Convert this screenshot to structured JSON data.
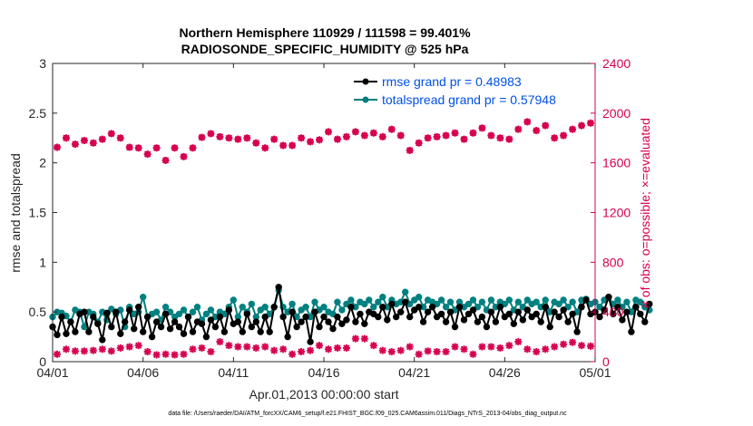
{
  "chart_data": {
    "type": "line",
    "title_line1": "Northern Hemisphere 110929 / 111598 = 99.401%",
    "title_line2": "RADIOSONDE_SPECIFIC_HUMIDITY @ 525 hPa",
    "xlabel": "Apr.01,2013 00:00:00 start",
    "ylabel_left": "rmse and totalspread",
    "ylabel_right": "# of obs: o=possible; ×=evaluated",
    "footnote": "data file: /Users/raeder/DAI/ATM_forcXX/CAM6_setup/f.e21.FHIST_BGC.f09_025.CAM6assim.011/Diags_NTrS_2013-04/obs_diag_output.nc",
    "x_tick_labels": [
      "04/01",
      "04/06",
      "04/11",
      "04/16",
      "04/21",
      "04/26",
      "05/01"
    ],
    "x_tick_days": [
      0,
      5,
      10,
      15,
      20,
      25,
      30
    ],
    "xlim": [
      0,
      30
    ],
    "ylim_left": [
      0,
      3
    ],
    "yticks_left": [
      "0",
      "0.5",
      "1",
      "1.5",
      "2",
      "2.5",
      "3"
    ],
    "ylim_right": [
      0,
      2400
    ],
    "yticks_right": [
      "0",
      "400",
      "800",
      "1200",
      "1600",
      "2000",
      "2400"
    ],
    "legend": [
      {
        "label": "rmse grand pr = 0.48983",
        "color": "#000000"
      },
      {
        "label": "totalspread grand pr = 0.57948",
        "color": "#008080"
      }
    ],
    "colors": {
      "rmse": "#000000",
      "spread": "#008080",
      "obs": "#d6004f"
    },
    "time_step_days": 0.25,
    "series": [
      {
        "name": "rmse",
        "values": [
          0.35,
          0.27,
          0.45,
          0.28,
          0.4,
          0.3,
          0.48,
          0.5,
          0.3,
          0.45,
          0.38,
          0.22,
          0.49,
          0.35,
          0.5,
          0.28,
          0.4,
          0.52,
          0.33,
          0.55,
          0.3,
          0.45,
          0.25,
          0.4,
          0.35,
          0.48,
          0.33,
          0.4,
          0.35,
          0.28,
          0.45,
          0.3,
          0.4,
          0.38,
          0.25,
          0.42,
          0.35,
          0.45,
          0.3,
          0.52,
          0.38,
          0.4,
          0.3,
          0.48,
          0.35,
          0.4,
          0.3,
          0.45,
          0.3,
          0.55,
          0.75,
          0.45,
          0.25,
          0.5,
          0.35,
          0.4,
          0.45,
          0.2,
          0.5,
          0.35,
          0.45,
          0.4,
          0.33,
          0.45,
          0.38,
          0.42,
          0.55,
          0.4,
          0.48,
          0.38,
          0.5,
          0.48,
          0.45,
          0.55,
          0.42,
          0.58,
          0.45,
          0.5,
          0.6,
          0.45,
          0.52,
          0.55,
          0.4,
          0.5,
          0.55,
          0.45,
          0.48,
          0.4,
          0.5,
          0.35,
          0.55,
          0.42,
          0.48,
          0.52,
          0.4,
          0.45,
          0.35,
          0.5,
          0.4,
          0.55,
          0.45,
          0.48,
          0.38,
          0.5,
          0.42,
          0.52,
          0.45,
          0.48,
          0.4,
          0.55,
          0.35,
          0.5,
          0.45,
          0.52,
          0.4,
          0.48,
          0.3,
          0.55,
          0.62,
          0.48,
          0.5,
          0.45,
          0.52,
          0.65,
          0.48,
          0.55,
          0.42,
          0.5,
          0.3,
          0.55,
          0.48,
          0.4,
          0.58
        ]
      },
      {
        "name": "totalspread",
        "values": [
          0.45,
          0.5,
          0.49,
          0.46,
          0.4,
          0.52,
          0.5,
          0.35,
          0.5,
          0.48,
          0.4,
          0.5,
          0.42,
          0.53,
          0.48,
          0.52,
          0.35,
          0.55,
          0.48,
          0.5,
          0.65,
          0.45,
          0.48,
          0.5,
          0.42,
          0.55,
          0.5,
          0.45,
          0.48,
          0.52,
          0.45,
          0.5,
          0.55,
          0.42,
          0.48,
          0.52,
          0.45,
          0.5,
          0.48,
          0.55,
          0.62,
          0.45,
          0.55,
          0.5,
          0.58,
          0.45,
          0.52,
          0.55,
          0.48,
          0.55,
          0.72,
          0.55,
          0.5,
          0.58,
          0.45,
          0.52,
          0.55,
          0.45,
          0.6,
          0.52,
          0.55,
          0.5,
          0.48,
          0.6,
          0.52,
          0.58,
          0.62,
          0.55,
          0.6,
          0.58,
          0.62,
          0.55,
          0.6,
          0.65,
          0.55,
          0.62,
          0.58,
          0.6,
          0.7,
          0.58,
          0.62,
          0.65,
          0.55,
          0.62,
          0.6,
          0.58,
          0.62,
          0.55,
          0.6,
          0.52,
          0.6,
          0.55,
          0.58,
          0.62,
          0.55,
          0.6,
          0.52,
          0.62,
          0.55,
          0.6,
          0.58,
          0.62,
          0.52,
          0.6,
          0.55,
          0.62,
          0.58,
          0.6,
          0.55,
          0.62,
          0.5,
          0.6,
          0.58,
          0.62,
          0.55,
          0.6,
          0.5,
          0.62,
          0.63,
          0.58,
          0.6,
          0.55,
          0.62,
          0.65,
          0.58,
          0.62,
          0.55,
          0.6,
          0.5,
          0.62,
          0.6,
          0.55,
          0.52
        ]
      },
      {
        "name": "obs_possible",
        "day_spacing": 0.5,
        "values": [
          1725,
          1800,
          1750,
          1780,
          1760,
          1790,
          1835,
          1800,
          1725,
          1720,
          1670,
          1720,
          1620,
          1720,
          1650,
          1720,
          1805,
          1835,
          1810,
          1800,
          1790,
          1800,
          1760,
          1720,
          1790,
          1740,
          1740,
          1800,
          1770,
          1785,
          1850,
          1790,
          1810,
          1850,
          1820,
          1840,
          1810,
          1870,
          1820,
          1700,
          1760,
          1800,
          1810,
          1820,
          1840,
          1790,
          1840,
          1880,
          1820,
          1800,
          1790,
          1870,
          1930,
          1860,
          1900,
          1800,
          1820,
          1870,
          1900,
          1920
        ]
      },
      {
        "name": "obs_evaluated",
        "day_spacing": 0.5,
        "values": [
          60,
          100,
          85,
          85,
          90,
          100,
          85,
          110,
          120,
          130,
          80,
          55,
          60,
          55,
          60,
          100,
          110,
          80,
          160,
          130,
          120,
          120,
          110,
          120,
          90,
          100,
          60,
          80,
          90,
          130,
          100,
          110,
          110,
          185,
          185,
          130,
          90,
          80,
          90,
          120,
          60,
          85,
          80,
          80,
          120,
          100,
          60,
          120,
          120,
          110,
          130,
          160,
          100,
          80,
          100,
          120,
          140,
          155,
          130,
          125
        ]
      }
    ]
  }
}
